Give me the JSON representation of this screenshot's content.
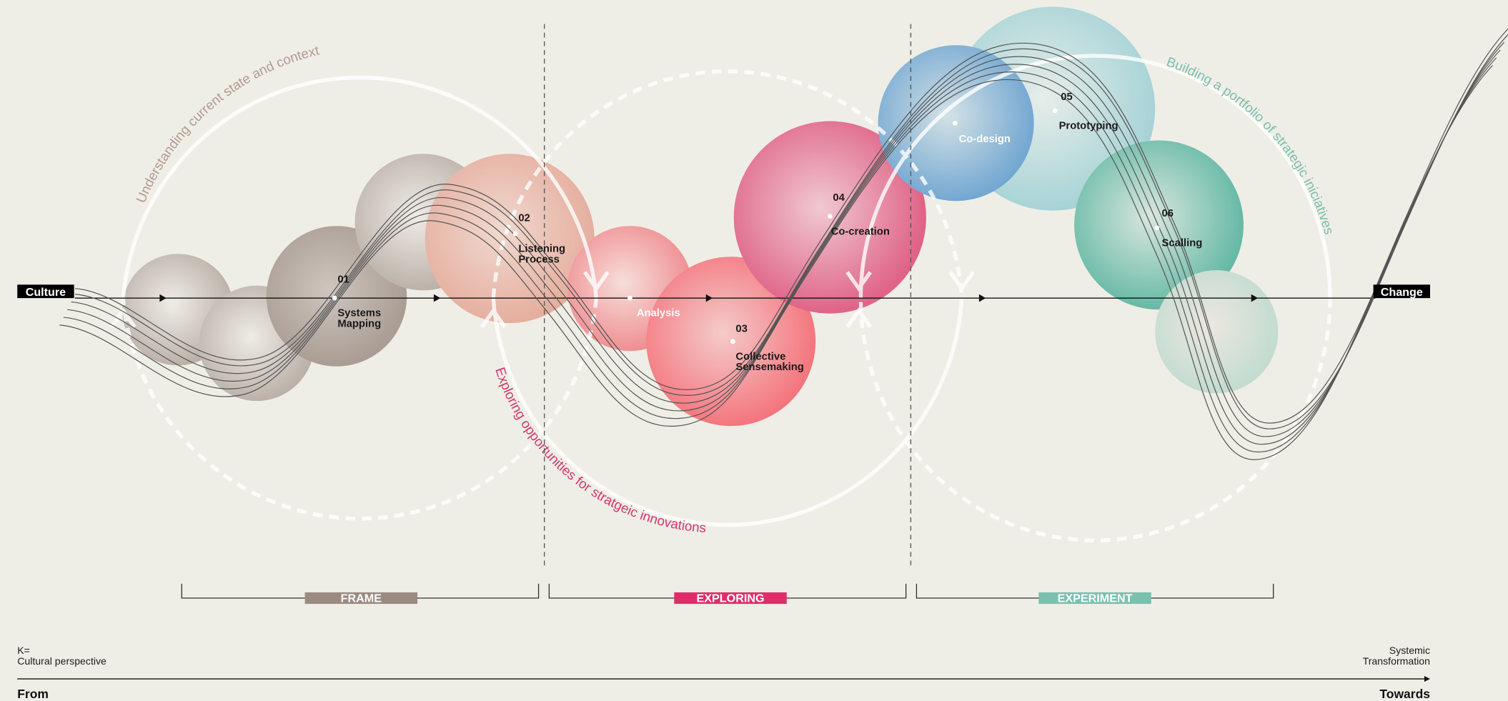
{
  "start_label": "Culture",
  "end_label": "Change",
  "arcs": [
    "Understanding current state and context",
    "Exploring opportunities for stratgeic innovations",
    "Building a portfolio of strategic iniciatives"
  ],
  "nodes": [
    {
      "number": "01",
      "label": [
        "Systems",
        "Mapping"
      ]
    },
    {
      "number": "02",
      "label": [
        "Listening",
        "Process"
      ]
    },
    {
      "label": [
        "Analysis"
      ]
    },
    {
      "number": "03",
      "label": [
        "Collective",
        "Sensemaking"
      ]
    },
    {
      "number": "04",
      "label": [
        "Co-creation"
      ]
    },
    {
      "label": [
        "Co-design"
      ]
    },
    {
      "number": "05",
      "label": [
        "Prototyping"
      ]
    },
    {
      "number": "06",
      "label": [
        "Scalling"
      ]
    }
  ],
  "phases": [
    "FRAME",
    "EXPLORING",
    "EXPERIMENT"
  ],
  "footer": {
    "left": [
      "K=",
      "Cultural perspective"
    ],
    "right": [
      "Systemic",
      "Transformation"
    ],
    "from": "From",
    "towards": "Towards"
  }
}
